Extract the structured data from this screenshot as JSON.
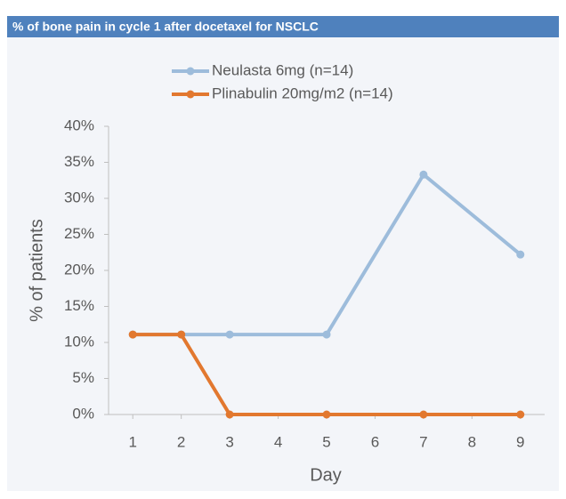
{
  "chart_data": {
    "type": "line",
    "title": "% of bone pain in cycle 1 after docetaxel for NSCLC",
    "x_label": "Day",
    "y_label": "% of patients",
    "x": [
      1,
      2,
      3,
      5,
      7,
      9
    ],
    "series": [
      {
        "name": "Neulasta 6mg (n=14)",
        "color": "#9dbcdb",
        "values": [
          11.1,
          11.1,
          11.1,
          11.1,
          33.3,
          22.2
        ]
      },
      {
        "name": "Plinabulin 20mg/m2 (n=14)",
        "color": "#e2782f",
        "values": [
          11.1,
          11.1,
          0,
          0,
          0,
          0
        ]
      }
    ],
    "xlim": [
      0.5,
      9.5
    ],
    "xticks": [
      1,
      2,
      3,
      4,
      5,
      6,
      7,
      8,
      9
    ],
    "ylim": [
      0,
      40
    ],
    "yticks": [
      {
        "value": 0,
        "label": "0%"
      },
      {
        "value": 5,
        "label": "5%"
      },
      {
        "value": 10,
        "label": "10%"
      },
      {
        "value": 15,
        "label": "15%"
      },
      {
        "value": 20,
        "label": "20%"
      },
      {
        "value": 25,
        "label": "25%"
      },
      {
        "value": 30,
        "label": "30%"
      },
      {
        "value": 35,
        "label": "35%"
      },
      {
        "value": 40,
        "label": "40%"
      }
    ],
    "legend": "top"
  }
}
